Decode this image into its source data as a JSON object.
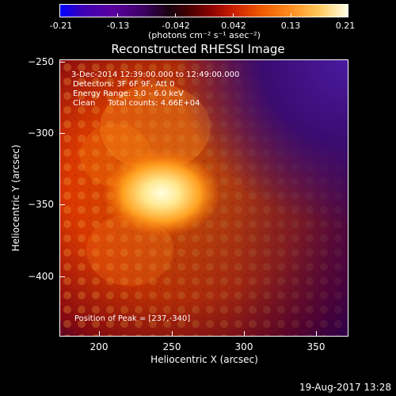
{
  "colorbar": {
    "ticks": [
      "-0.21",
      "-0.13",
      "-0.042",
      "0.042",
      "0.13",
      "0.21"
    ],
    "unit": "(photons cm⁻² s⁻¹ asec⁻²)"
  },
  "title": "Reconstructed RHESSI Image",
  "annotations": {
    "time": "3-Dec-2014 12:39:00.000 to 12:49:00.000",
    "detectors": "Detectors: 3F 6F 9F, Att 0",
    "energy": "Energy Range: 3.0 - 6.0 keV",
    "clean": "Clean     Total counts: 4.66E+04",
    "peak": "Position of Peak = [237,-340]"
  },
  "axes": {
    "xlabel": "Heliocentric X (arcsec)",
    "ylabel": "Heliocentric Y (arcsec)",
    "xticks": [
      "200",
      "250",
      "300",
      "350"
    ],
    "yticks": [
      "−250",
      "−300",
      "−350",
      "−400"
    ]
  },
  "footer": {
    "datestamp": "19-Aug-2017 13:28"
  }
}
